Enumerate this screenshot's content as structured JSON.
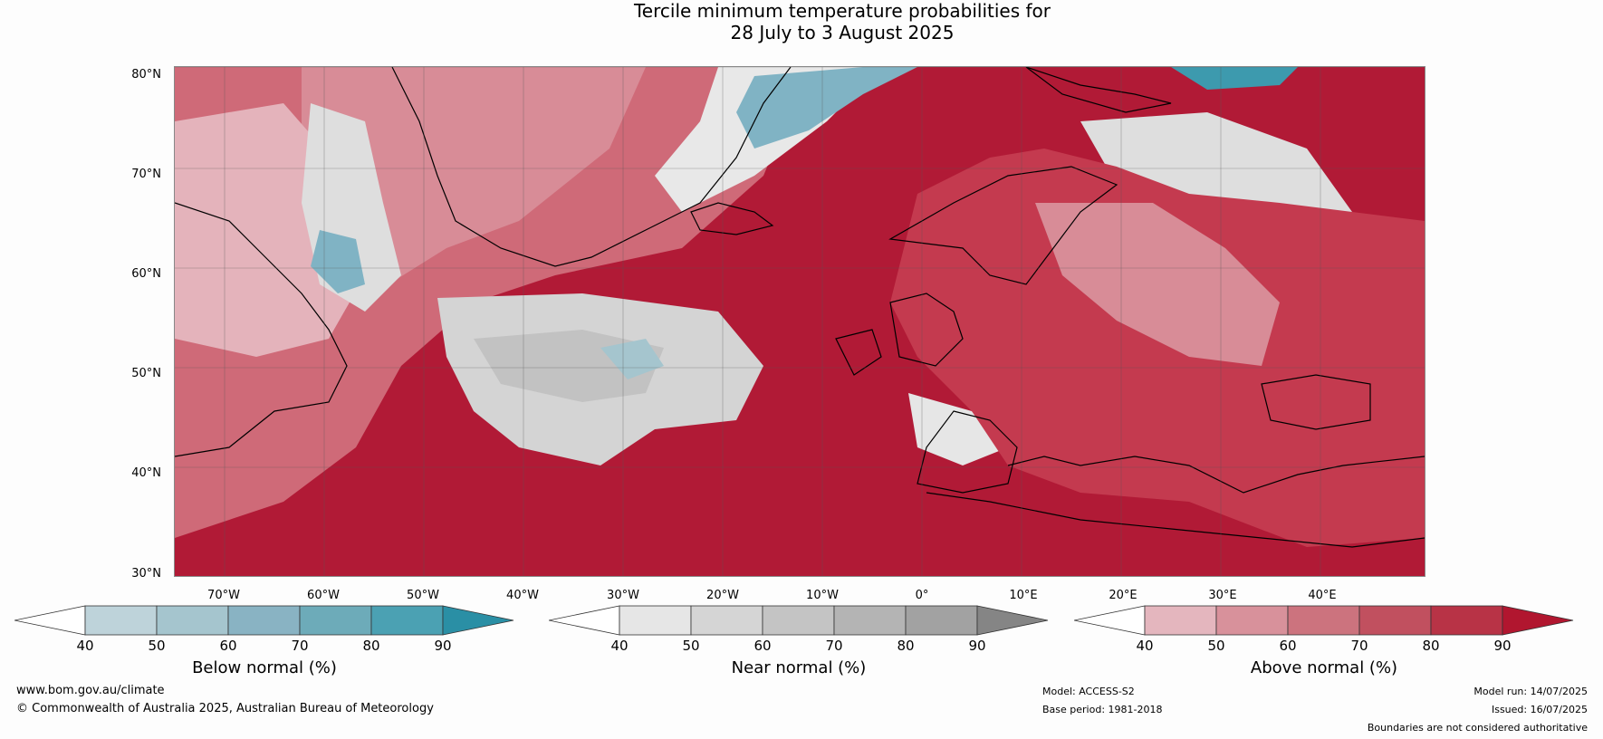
{
  "title": {
    "line1": "Tercile minimum temperature probabilities for",
    "line2": "28 July to 3 August 2025"
  },
  "map": {
    "lat_labels": [
      "80°N",
      "70°N",
      "60°N",
      "50°N",
      "40°N",
      "30°N"
    ],
    "lon_labels": [
      "70°W",
      "60°W",
      "50°W",
      "40°W",
      "30°W",
      "20°W",
      "10°W",
      "0°",
      "10°E",
      "20°E",
      "30°E",
      "40°E"
    ],
    "colors": {
      "above_90": "#b11a36",
      "above_80": "#c43a4f",
      "above_70": "#cf6a78",
      "above_60": "#d88c97",
      "above_50": "#e4b3bb",
      "near_normal": "#dedede",
      "near_dark": "#c2c2c2",
      "below": "#80b3c4",
      "below_dark": "#3d9aae",
      "coast": "#000000",
      "border": "#888888"
    }
  },
  "colorbars": [
    {
      "label": "Below normal (%)",
      "ticks": [
        "40",
        "50",
        "60",
        "70",
        "80",
        "90"
      ],
      "colors": [
        "#ffffff",
        "#bed3da",
        "#a5c5ce",
        "#89b3c3",
        "#6dabb9",
        "#4ba1b3",
        "#2a8fa5"
      ]
    },
    {
      "label": "Near normal (%)",
      "ticks": [
        "40",
        "50",
        "60",
        "70",
        "80",
        "90"
      ],
      "colors": [
        "#ffffff",
        "#e6e6e6",
        "#d5d5d5",
        "#c4c4c4",
        "#b4b4b4",
        "#a2a2a2",
        "#858585"
      ]
    },
    {
      "label": "Above normal (%)",
      "ticks": [
        "40",
        "50",
        "60",
        "70",
        "80",
        "90"
      ],
      "colors": [
        "#ffffff",
        "#e4b6be",
        "#d8919b",
        "#cc737e",
        "#c1505f",
        "#b83346",
        "#b1162f"
      ]
    }
  ],
  "footer": {
    "website": "www.bom.gov.au/climate",
    "copyright": "© Commonwealth of Australia 2025, Australian Bureau of Meteorology",
    "model": "Model: ACCESS-S2",
    "base_period": "Base period: 1981-2018",
    "model_run": "Model run: 14/07/2025",
    "issued": "Issued: 16/07/2025",
    "disclaimer": "Boundaries are not considered authoritative"
  }
}
